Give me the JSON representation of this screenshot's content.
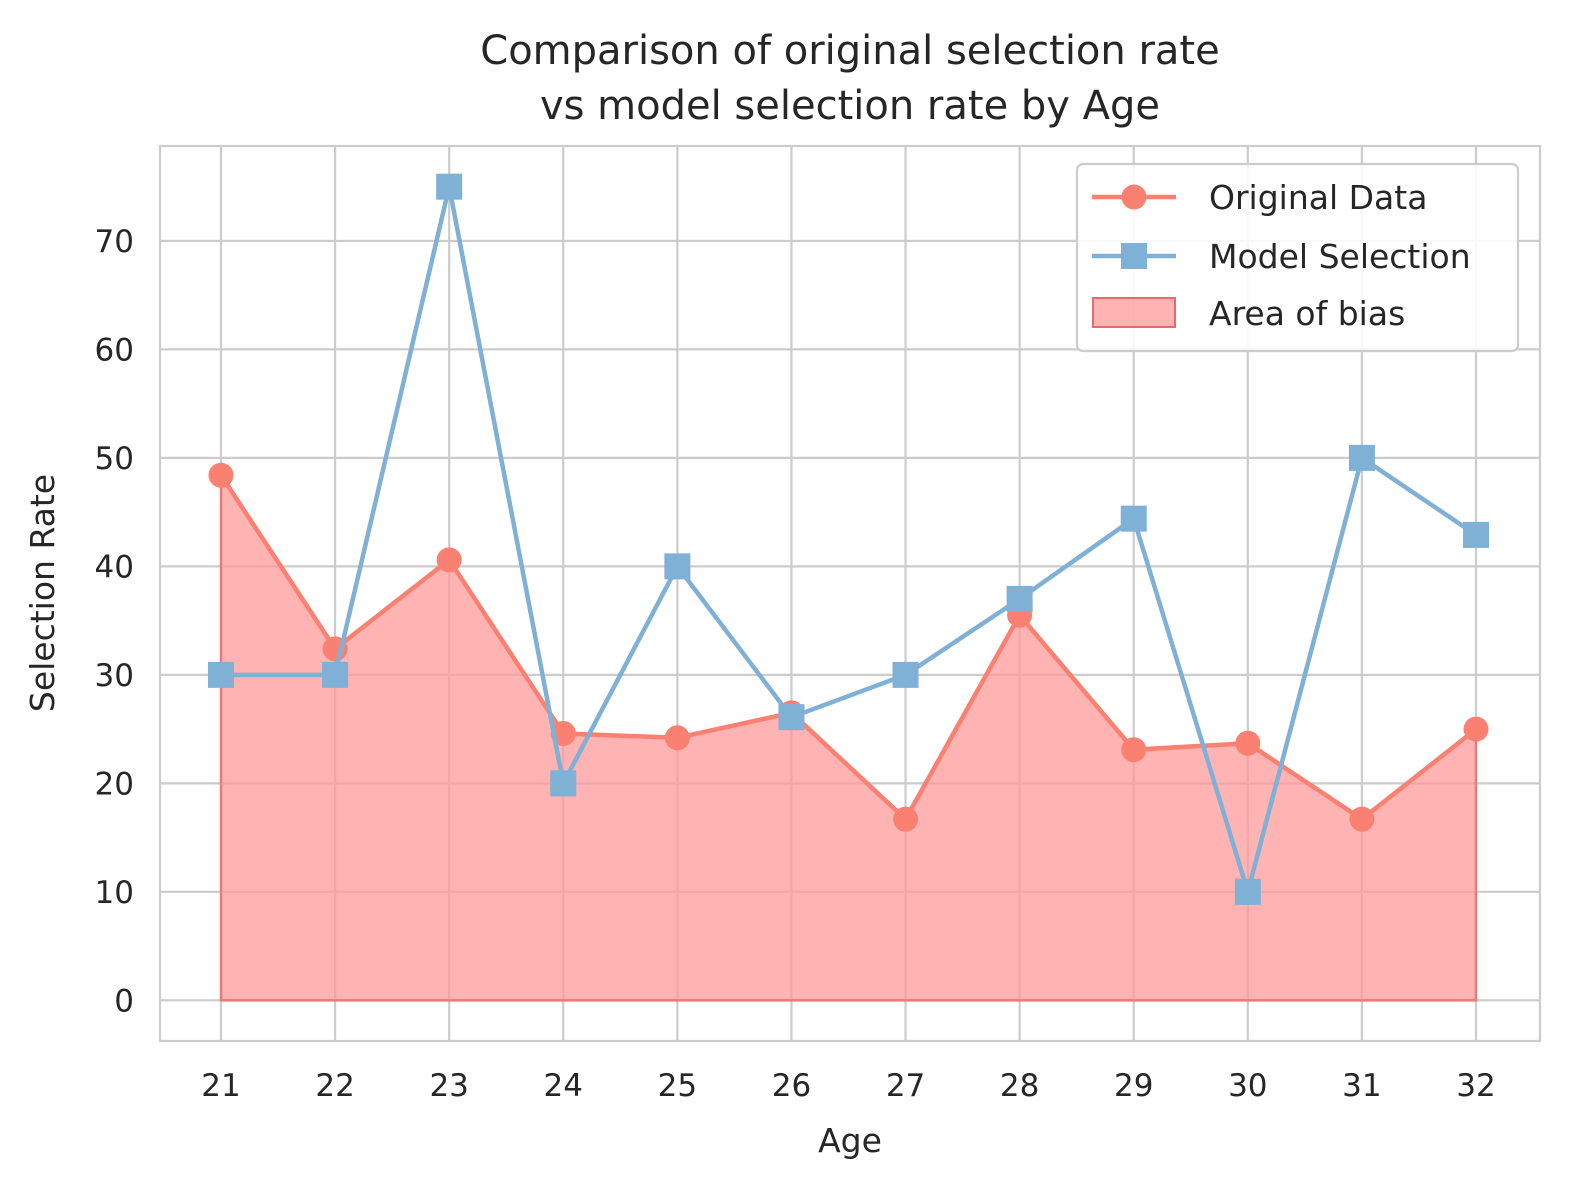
{
  "chart_data": {
    "type": "line",
    "title": [
      "Comparison of original selection rate",
      "vs model selection rate by Age"
    ],
    "xlabel": "Age",
    "ylabel": "Selection Rate",
    "x": [
      "21",
      "22",
      "23",
      "24",
      "25",
      "26",
      "27",
      "28",
      "29",
      "30",
      "31",
      "32"
    ],
    "yticks": [
      0,
      10,
      20,
      30,
      40,
      50,
      60,
      70
    ],
    "ylim": [
      -3.75,
      78.75
    ],
    "grid": true,
    "legend_position": "top-right",
    "series": [
      {
        "name": "Original Data",
        "marker": "circle",
        "color": "#fa8072",
        "values": [
          48.4,
          32.4,
          40.6,
          24.6,
          24.2,
          26.5,
          16.7,
          35.5,
          23.1,
          23.7,
          16.7,
          25.0
        ]
      },
      {
        "name": "Model Selection",
        "marker": "square",
        "color": "#7fb0d6",
        "values": [
          30,
          30,
          75,
          20,
          40,
          26.1,
          30,
          37,
          44.4,
          10,
          50,
          42.9
        ]
      }
    ],
    "area": {
      "name": "Area of bias",
      "color": "#ff9999",
      "of_series": "Original Data"
    }
  }
}
